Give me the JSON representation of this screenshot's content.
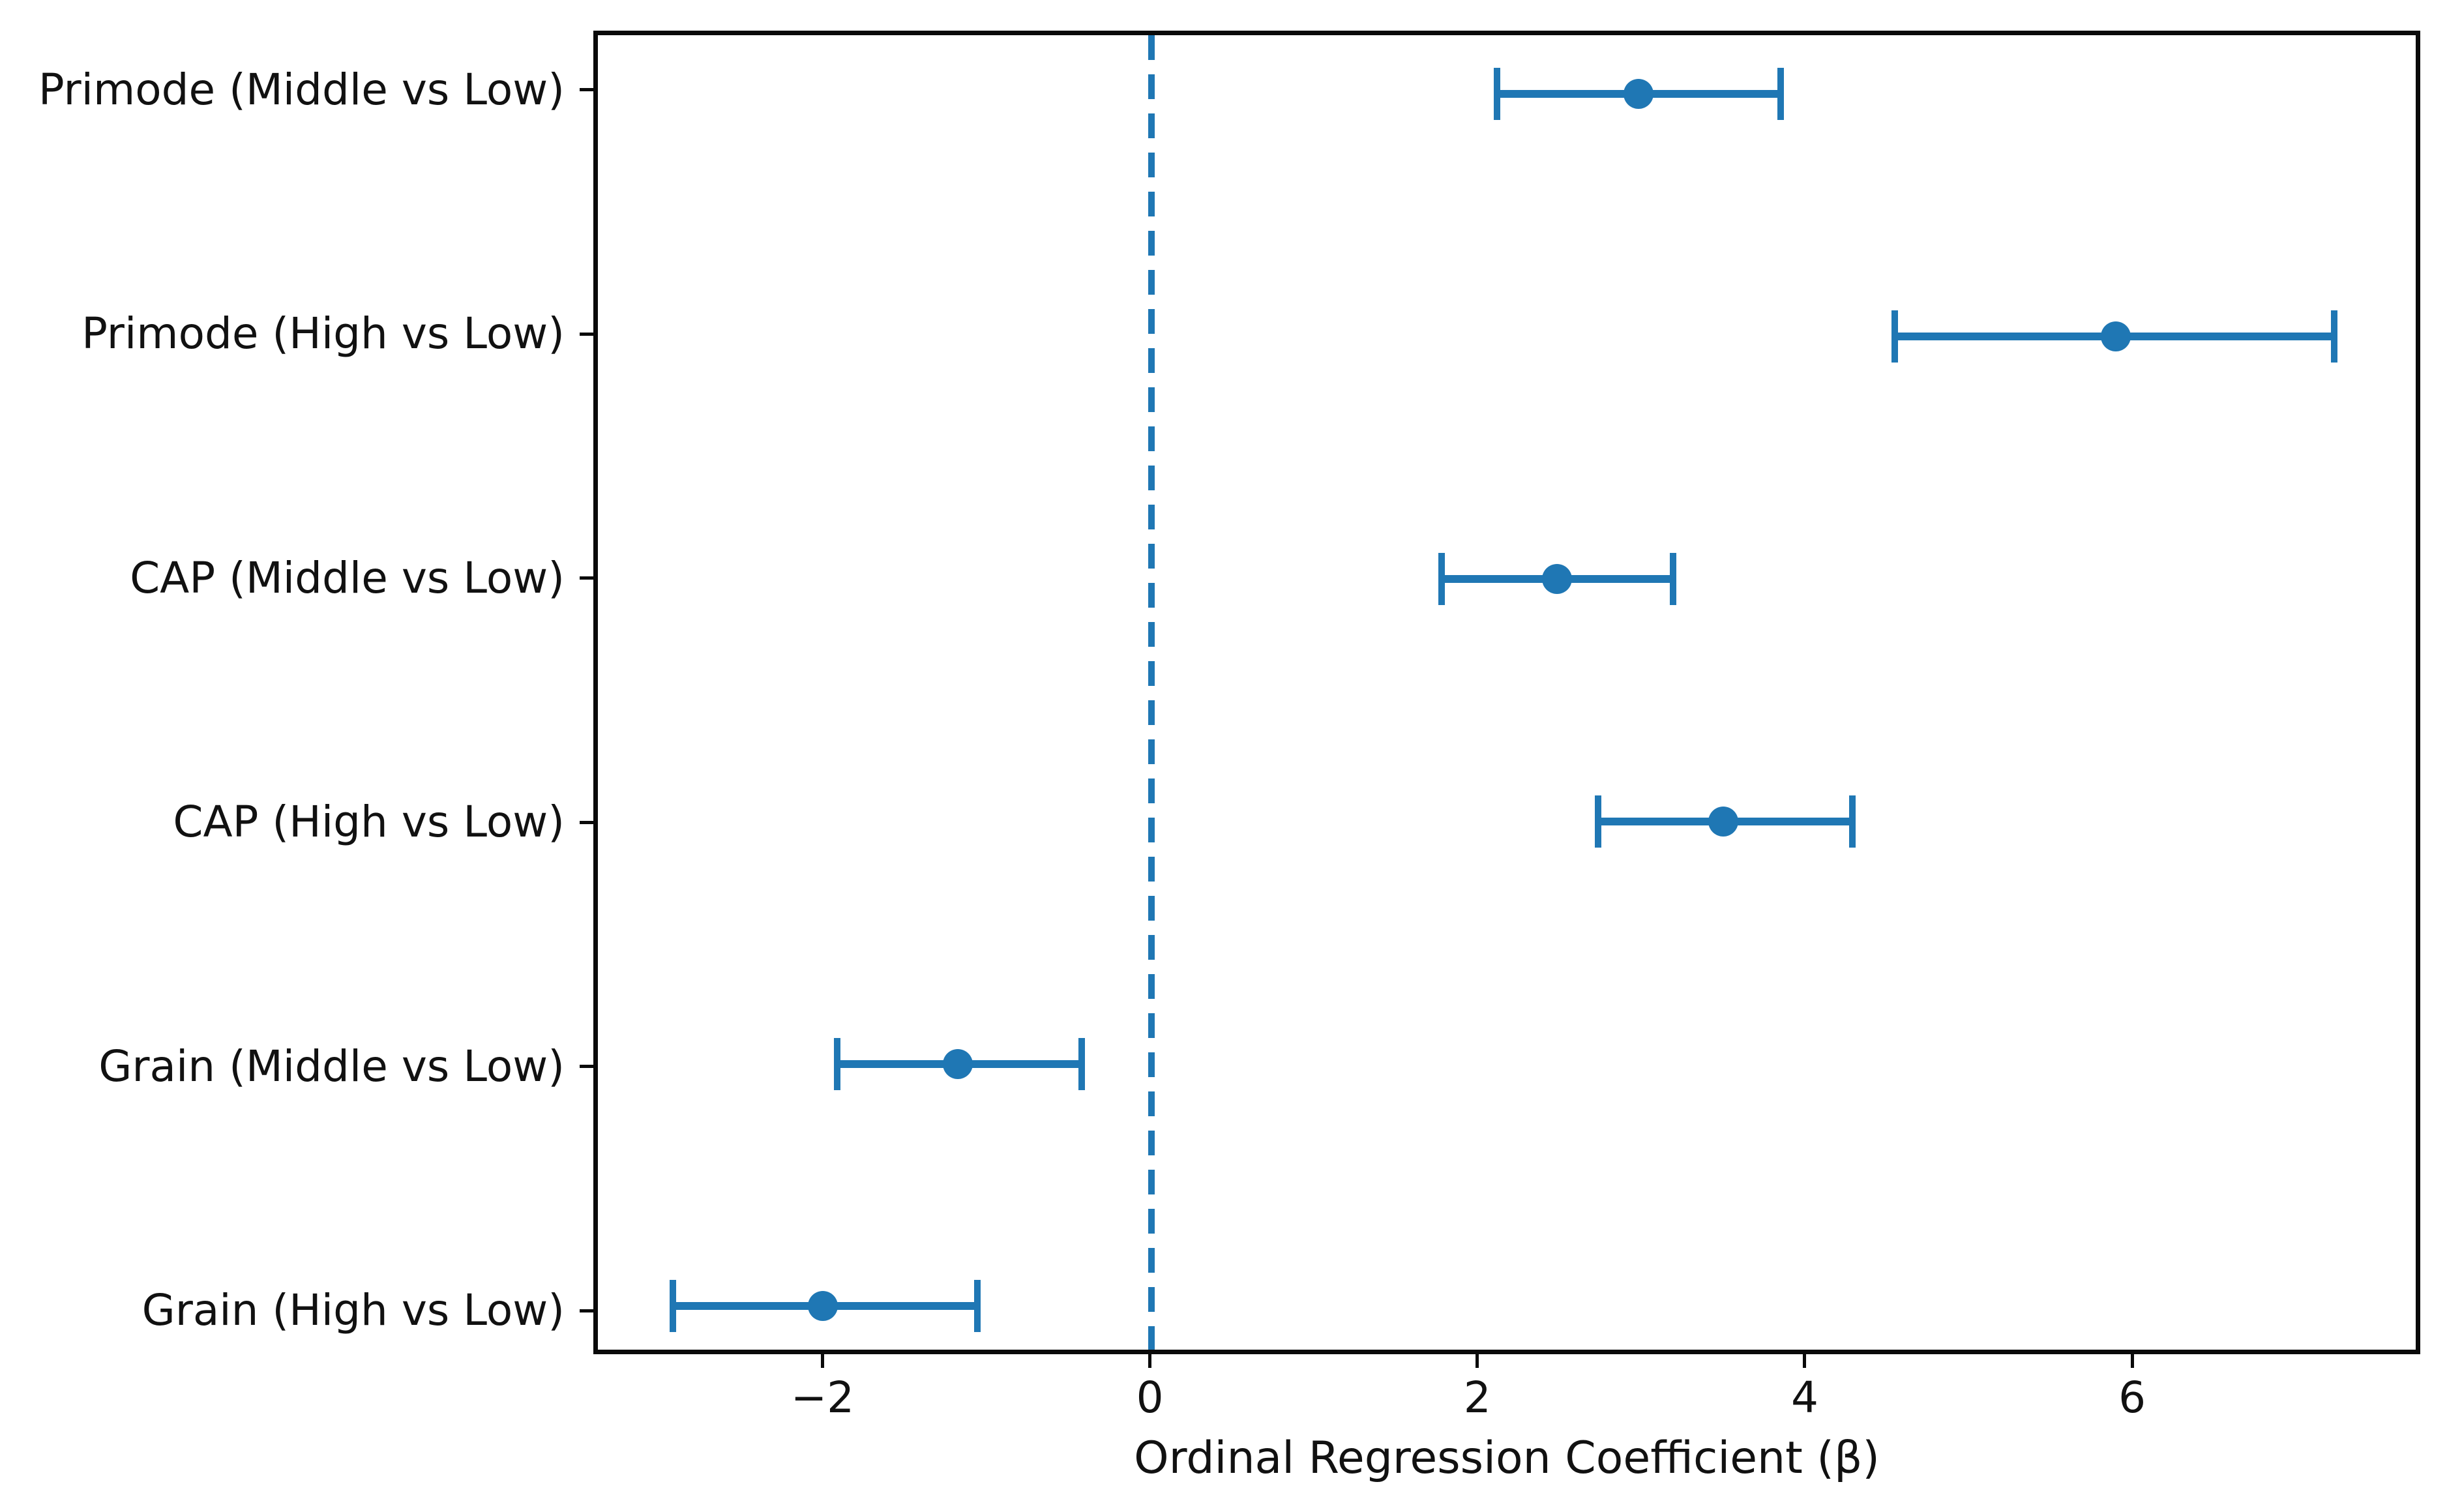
{
  "colors": {
    "accent": "#1f77b4",
    "axis": "#0a0a0a",
    "text": "#111111",
    "background": "#ffffff"
  },
  "chart_data": {
    "type": "scatter",
    "style": "horizontal-errorbar-forest-plot",
    "title": "",
    "xlabel": "Ordinal Regression Coefficient (β)",
    "ylabel": "",
    "xlim": [
      -3.4,
      7.76
    ],
    "x_ticks": [
      -2,
      0,
      2,
      4,
      6
    ],
    "x_tick_labels": [
      "−2",
      "0",
      "2",
      "4",
      "6"
    ],
    "reference_line_x": 0,
    "grid": false,
    "legend": null,
    "categories": [
      "Primode (Middle vs Low)",
      "Primode (High vs Low)",
      "CAP (Middle vs Low)",
      "CAP (High vs Low)",
      "Grain (Middle vs Low)",
      "Grain (High vs Low)"
    ],
    "points": [
      {
        "label": "Primode (Middle vs Low)",
        "value": 2.99,
        "ci_low": 2.12,
        "ci_high": 3.86
      },
      {
        "label": "Primode (High vs Low)",
        "value": 5.92,
        "ci_low": 4.56,
        "ci_high": 7.26
      },
      {
        "label": "CAP (Middle vs Low)",
        "value": 2.49,
        "ci_low": 1.78,
        "ci_high": 3.2
      },
      {
        "label": "CAP (High vs Low)",
        "value": 3.51,
        "ci_low": 2.74,
        "ci_high": 4.3
      },
      {
        "label": "Grain (Middle vs Low)",
        "value": -1.19,
        "ci_low": -1.93,
        "ci_high": -0.43
      },
      {
        "label": "Grain (High vs Low)",
        "value": -2.02,
        "ci_low": -2.94,
        "ci_high": -1.07
      }
    ]
  }
}
